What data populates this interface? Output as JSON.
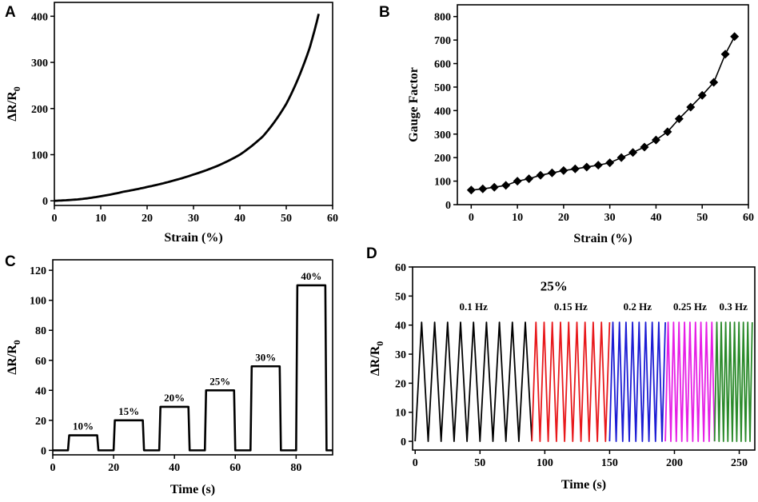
{
  "colors": {
    "axis": "#000000",
    "series_black": "#000000",
    "series_red": "#e8191c",
    "series_blue": "#1c1cd4",
    "series_magenta": "#e61ee6",
    "series_green": "#2a8a2a"
  },
  "chart_data": [
    {
      "panel": "A",
      "type": "line",
      "xlabel": "Strain (%)",
      "ylabel": "ΔR/R",
      "ylabel_sub": "0",
      "xlim": [
        0,
        60
      ],
      "ylim": [
        -10,
        430
      ],
      "xticks": [
        0,
        10,
        20,
        30,
        40,
        50,
        60
      ],
      "yticks": [
        0,
        100,
        200,
        300,
        400
      ],
      "series": [
        {
          "name": "ΔR/R0",
          "x": [
            0,
            5,
            10,
            15,
            20,
            25,
            30,
            35,
            40,
            45,
            50,
            55,
            57
          ],
          "y": [
            0,
            3,
            10,
            20,
            30,
            42,
            57,
            75,
            100,
            140,
            210,
            330,
            405
          ]
        }
      ]
    },
    {
      "panel": "B",
      "type": "line",
      "xlabel": "Strain (%)",
      "ylabel": "Gauge Factor",
      "xlim": [
        -3,
        60
      ],
      "ylim": [
        0,
        850
      ],
      "xticks": [
        0,
        10,
        20,
        30,
        40,
        50,
        60
      ],
      "yticks": [
        0,
        100,
        200,
        300,
        400,
        500,
        600,
        700,
        800
      ],
      "marker": "diamond",
      "series": [
        {
          "name": "Gauge Factor",
          "x": [
            0,
            2.5,
            5,
            7.5,
            10,
            12.5,
            15,
            17.5,
            20,
            22.5,
            25,
            27.5,
            30,
            32.5,
            35,
            37.5,
            40,
            42.5,
            45,
            47.5,
            50,
            52.5,
            55,
            57
          ],
          "y": [
            62,
            67,
            74,
            82,
            100,
            110,
            125,
            135,
            145,
            152,
            160,
            168,
            178,
            200,
            222,
            245,
            275,
            310,
            365,
            415,
            465,
            520,
            640,
            715
          ]
        }
      ]
    },
    {
      "panel": "C",
      "type": "line",
      "xlabel": "Time (s)",
      "ylabel": "ΔR/R",
      "ylabel_sub": "0",
      "xlim": [
        0,
        92
      ],
      "ylim": [
        -3,
        127
      ],
      "xticks": [
        0,
        20,
        40,
        60,
        80
      ],
      "yticks": [
        0,
        20,
        40,
        60,
        80,
        100,
        120
      ],
      "steps": [
        {
          "start": 5,
          "end": 15,
          "value": 10,
          "label": "10%"
        },
        {
          "start": 20,
          "end": 30,
          "value": 20,
          "label": "15%"
        },
        {
          "start": 35,
          "end": 45,
          "value": 29,
          "label": "20%"
        },
        {
          "start": 50,
          "end": 60,
          "value": 40,
          "label": "25%"
        },
        {
          "start": 65,
          "end": 75,
          "value": 56,
          "label": "30%"
        },
        {
          "start": 80,
          "end": 90,
          "value": 110,
          "label": "40%"
        }
      ]
    },
    {
      "panel": "D",
      "type": "line",
      "title": "25%",
      "xlabel": "Time (s)",
      "ylabel": "ΔR/R",
      "ylabel_sub": "0",
      "xlim": [
        -2,
        262
      ],
      "ylim": [
        -3,
        60
      ],
      "xticks": [
        0,
        50,
        100,
        150,
        200,
        250
      ],
      "yticks": [
        0,
        10,
        20,
        30,
        40,
        50,
        60
      ],
      "amplitude_max": 41,
      "amplitude_min": 0,
      "segments": [
        {
          "label": "0.1 Hz",
          "start": 0,
          "end": 90,
          "cycles": 9.2,
          "color": "#000000"
        },
        {
          "label": "0.15 Hz",
          "start": 90,
          "end": 150,
          "cycles": 9.5,
          "color": "#e8191c"
        },
        {
          "label": "0.2 Hz",
          "start": 150,
          "end": 193,
          "cycles": 8.5,
          "color": "#1c1cd4"
        },
        {
          "label": "0.25 Hz",
          "start": 193,
          "end": 231,
          "cycles": 9.0,
          "color": "#e61ee6"
        },
        {
          "label": "0.3 Hz",
          "start": 231,
          "end": 260,
          "cycles": 8.5,
          "color": "#2a8a2a"
        }
      ]
    }
  ]
}
